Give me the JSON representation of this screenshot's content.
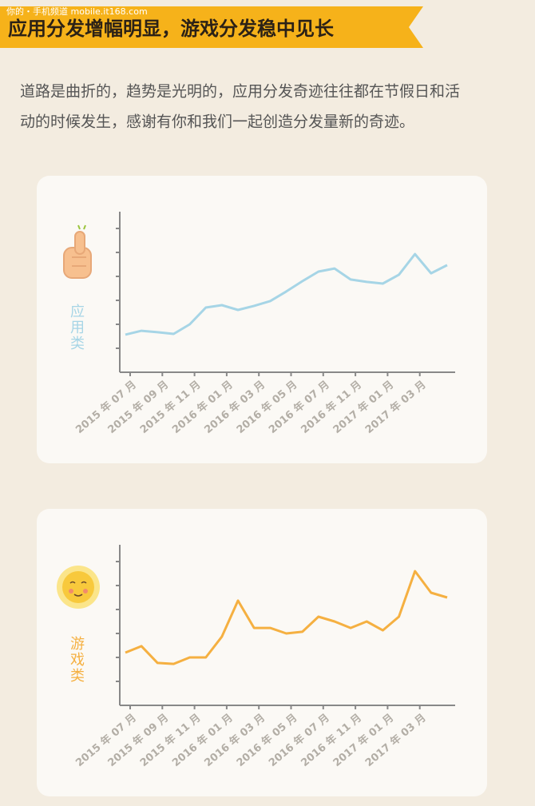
{
  "header": {
    "watermark": "你的・手机频道 mobile.it168.com",
    "title": "应用分发增幅明显，游戏分发稳中见长"
  },
  "paragraph": [
    "道路是曲折的，趋势是光明的，应用分发奇迹往往都在节假日和活",
    "动的时候发生，感谢有你和我们一起创造分发量新的奇迹。"
  ],
  "chart_data": [
    {
      "type": "line",
      "label": "应用类",
      "color": "#a6d5e6",
      "categories": [
        "2015 年 07 月",
        null,
        "2015 年 09 月",
        null,
        "2015 年 11 月",
        null,
        "2016 年 01 月",
        null,
        "2016 年 03 月",
        null,
        "2016 年 05 月",
        null,
        "2016 年 07 月",
        null,
        "2016 年 11 月",
        null,
        "2017 年 01 月",
        null,
        "2017 年 03 月",
        null,
        null
      ],
      "values": [
        1.57,
        1.73,
        1.67,
        1.6,
        2.0,
        2.7,
        2.8,
        2.6,
        2.77,
        2.97,
        3.37,
        3.8,
        4.2,
        4.33,
        3.87,
        3.77,
        3.7,
        4.07,
        4.93,
        4.13,
        4.47
      ],
      "ylim": [
        0,
        6.7
      ],
      "yticks": [
        1,
        2,
        3,
        4,
        5,
        6
      ]
    },
    {
      "type": "line",
      "label": "游戏类",
      "color": "#f5b041",
      "categories": [
        "2015 年 07 月",
        null,
        "2015 年 09 月",
        null,
        "2015 年 11 月",
        null,
        "2016 年 01 月",
        null,
        "2016 年 03 月",
        null,
        "2016 年 05 月",
        null,
        "2016 年 07 月",
        null,
        "2016 年 11 月",
        null,
        "2017 年 01 月",
        null,
        "2017 年 03 月",
        null,
        null
      ],
      "values": [
        2.2,
        2.47,
        1.77,
        1.73,
        2.0,
        2.0,
        2.87,
        4.37,
        3.23,
        3.23,
        3.0,
        3.07,
        3.7,
        3.5,
        3.23,
        3.5,
        3.13,
        3.7,
        5.6,
        4.7,
        4.5
      ],
      "ylim": [
        0,
        6.7
      ],
      "yticks": [
        1,
        2,
        3,
        4,
        5,
        6
      ]
    }
  ]
}
